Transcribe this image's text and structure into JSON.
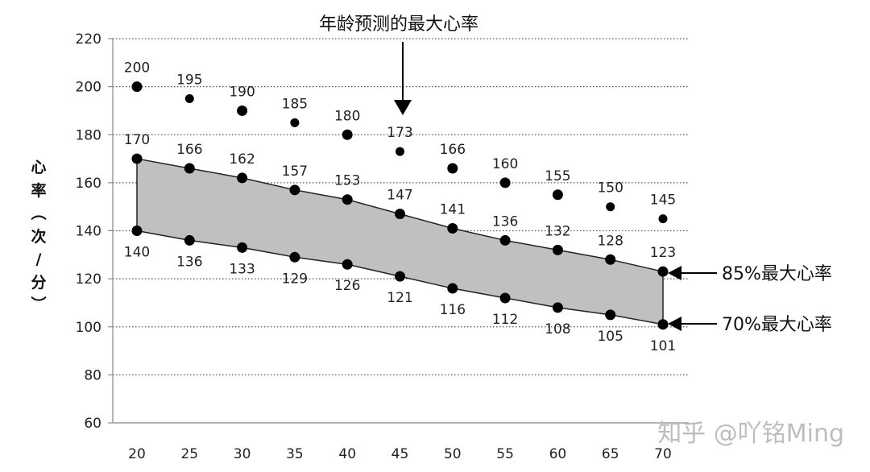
{
  "chart_data": {
    "type": "scatter",
    "title": "年龄预测的最大心率",
    "ylabel": "心率（次/分）",
    "xlabel": "",
    "x": [
      20,
      25,
      30,
      35,
      40,
      45,
      50,
      55,
      60,
      65,
      70
    ],
    "ylim": [
      60,
      220
    ],
    "yticks": [
      60,
      80,
      100,
      120,
      140,
      160,
      180,
      200,
      220
    ],
    "grid": "horizontal dotted",
    "series": [
      {
        "name": "",
        "values": [
          200,
          195,
          190,
          185,
          180,
          173,
          166,
          160,
          155,
          150,
          145
        ]
      },
      {
        "name": "85%最大心率",
        "values": [
          170,
          166,
          162,
          157,
          153,
          147,
          141,
          136,
          132,
          128,
          123
        ]
      },
      {
        "name": "70%最大心率",
        "values": [
          140,
          136,
          133,
          129,
          126,
          121,
          116,
          112,
          108,
          105,
          101
        ]
      }
    ],
    "band_color": "#c0c0c0",
    "marker_color": "#000000"
  },
  "watermark": "知乎 @吖铭Ming"
}
